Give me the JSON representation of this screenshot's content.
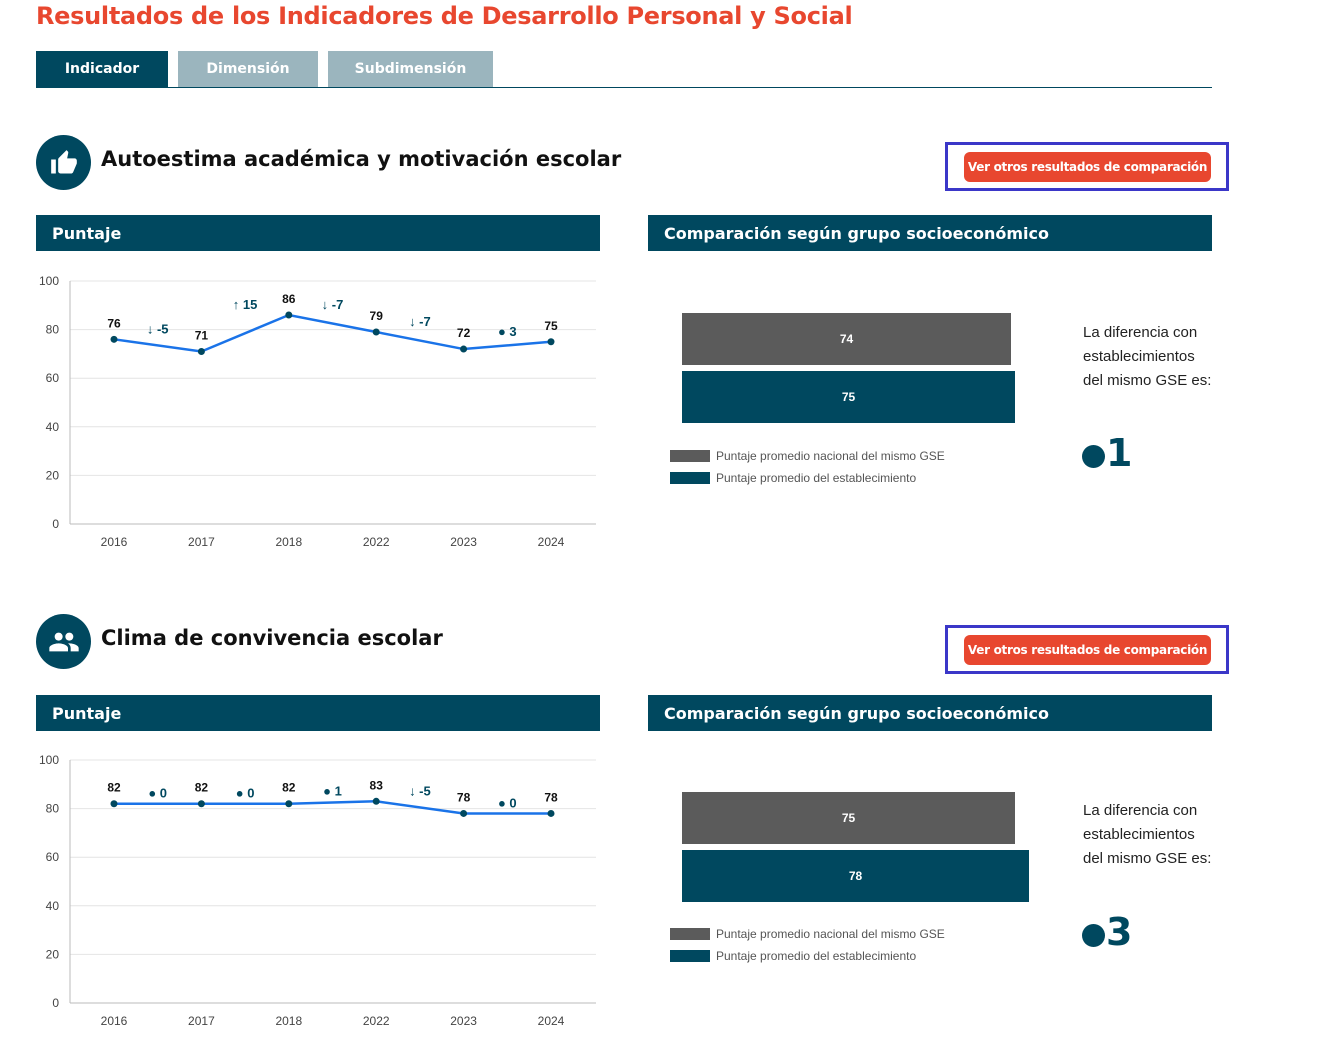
{
  "page_title": "Resultados de los Indicadores de Desarrollo Personal y Social",
  "tabs": [
    {
      "label": "Indicador",
      "active": true
    },
    {
      "label": "Dimensión",
      "active": false
    },
    {
      "label": "Subdimensión",
      "active": false
    }
  ],
  "colors": {
    "brand": "#00485f",
    "accent": "#e8472f",
    "inactive_tab": "#9bb5be",
    "national_bar": "#5b5b5b",
    "line": "#1a73e8",
    "highlight_frame": "#3b37c8"
  },
  "compare_button_label": "Ver otros resultados de comparación",
  "sections": [
    {
      "icon": "thumbs-up-icon",
      "title": "Autoestima académica y motivación escolar",
      "score_panel_title": "Puntaje",
      "gse_panel_title": "Comparación según grupo socioeconómico",
      "national_value": "74",
      "school_value": "75",
      "legend_national": "Puntaje promedio nacional del mismo GSE",
      "legend_school": "Puntaje promedio del establecimiento",
      "diff_text": "La diferencia con establecimientos del mismo GSE es:",
      "diff_value": "1"
    },
    {
      "icon": "people-icon",
      "title": "Clima de convivencia escolar",
      "score_panel_title": "Puntaje",
      "gse_panel_title": "Comparación según grupo socioeconómico",
      "national_value": "75",
      "school_value": "78",
      "legend_national": "Puntaje promedio nacional del mismo GSE",
      "legend_school": "Puntaje promedio del establecimiento",
      "diff_text": "La diferencia con establecimientos del mismo GSE es:",
      "diff_value": "3"
    }
  ],
  "chart_data": [
    {
      "type": "line",
      "x": [
        "2016",
        "2017",
        "2018",
        "2022",
        "2023",
        "2024"
      ],
      "series": [
        {
          "values": [
            76,
            71,
            86,
            79,
            72,
            75
          ]
        }
      ],
      "changes": [
        "↓ -5",
        "↑ 15",
        "↓ -7",
        "↓ -7",
        "● 3"
      ],
      "ylim": [
        0,
        100
      ],
      "yticks": [
        0,
        20,
        40,
        60,
        80,
        100
      ],
      "grid": true
    },
    {
      "type": "line",
      "x": [
        "2016",
        "2017",
        "2018",
        "2022",
        "2023",
        "2024"
      ],
      "series": [
        {
          "values": [
            82,
            82,
            82,
            83,
            78,
            78
          ]
        }
      ],
      "changes": [
        "● 0",
        "● 0",
        "● 1",
        "↓ -5",
        "● 0"
      ],
      "ylim": [
        0,
        100
      ],
      "yticks": [
        0,
        20,
        40,
        60,
        80,
        100
      ],
      "grid": true
    },
    {
      "type": "bar",
      "orientation": "horizontal",
      "categories": [
        "Puntaje promedio nacional del mismo GSE",
        "Puntaje promedio del establecimiento"
      ],
      "values": [
        74,
        75
      ]
    },
    {
      "type": "bar",
      "orientation": "horizontal",
      "categories": [
        "Puntaje promedio nacional del mismo GSE",
        "Puntaje promedio del establecimiento"
      ],
      "values": [
        75,
        78
      ]
    }
  ]
}
